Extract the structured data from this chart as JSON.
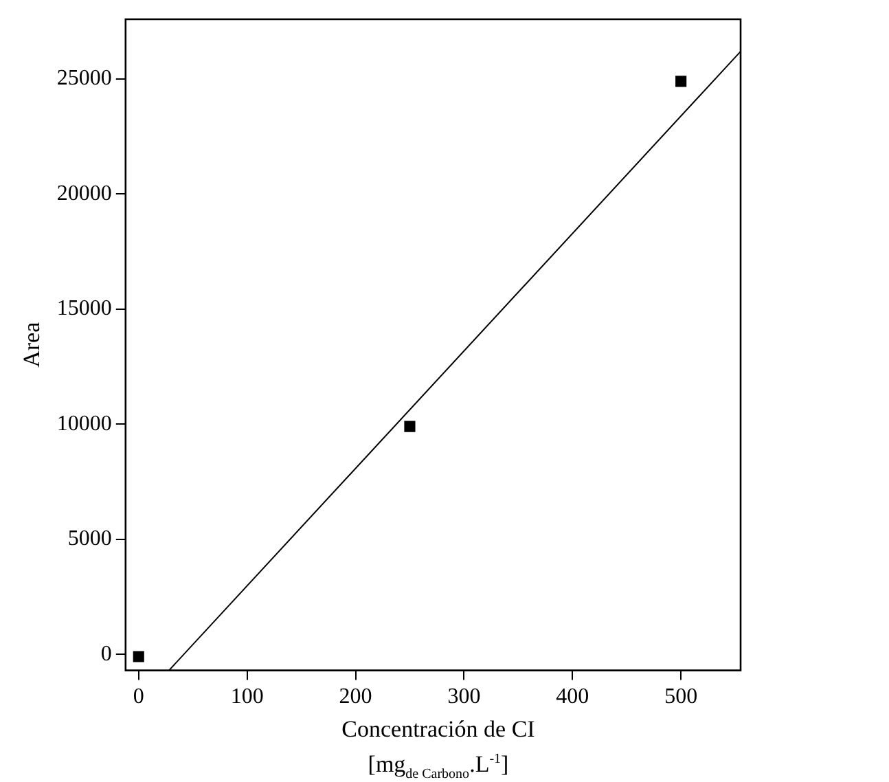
{
  "chart_data": {
    "type": "scatter",
    "xlabel": "Concentración de CI\n[mg$_{de Carbono}$.L$^{-1}$]",
    "ylabel": "Area",
    "xlim": [
      -12,
      555
    ],
    "xticks": [
      0,
      100,
      200,
      300,
      400,
      500
    ],
    "ylim": [
      -700,
      27600
    ],
    "yticks": [
      0,
      5000,
      10000,
      15000,
      20000,
      25000
    ],
    "grid": false,
    "legend": false,
    "marker": "square",
    "series": [
      {
        "color": "#000000",
        "x": [
          0,
          250,
          500
        ],
        "values": [
          -100,
          9900,
          24900
        ]
      },
      {
        "type": "line",
        "color": "#000000",
        "x": [
          28,
          555
        ],
        "values": [
          -700,
          26200
        ],
        "marker": "none",
        "line_style": "solid"
      }
    ]
  }
}
